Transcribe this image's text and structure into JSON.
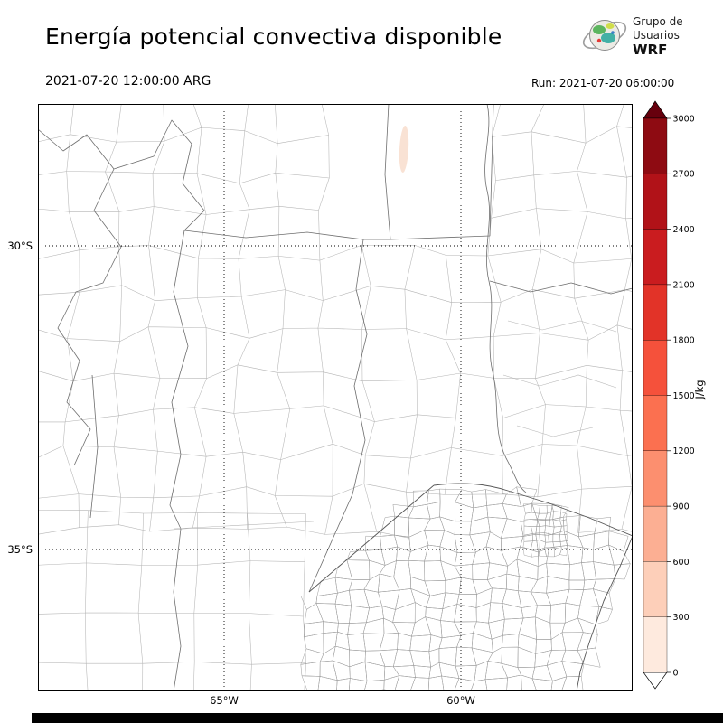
{
  "header": {
    "title": "Energía potencial convectiva disponible",
    "valid_time": "2021-07-20 12:00:00 ARG",
    "run_label": "Run: 2021-07-20 06:00:00",
    "logo": {
      "line1": "Grupo de",
      "line2": "Usuarios",
      "line3": "WRF"
    }
  },
  "map": {
    "lat_labels": {
      "lat30": "30°S",
      "lat35": "35°S"
    },
    "lon_labels": {
      "lon65": "65°W",
      "lon60": "60°W"
    }
  },
  "colorbar": {
    "unit": "J/kg",
    "ticks_top_to_bottom": [
      "3000",
      "2700",
      "2400",
      "2100",
      "1800",
      "1500",
      "1200",
      "900",
      "600",
      "300",
      "0"
    ],
    "segment_colors_top_to_bottom": [
      "#8e0b12",
      "#b11218",
      "#ca1c1f",
      "#e23328",
      "#f5513b",
      "#fb7050",
      "#fc8f6f",
      "#fcaf93",
      "#fdcfb9",
      "#feeade"
    ],
    "over_color": "#67000d",
    "under_color": "#ffffff"
  },
  "chart_data": {
    "type": "heatmap",
    "title": "Energía potencial convectiva disponible",
    "field": "CAPE (convective available potential energy)",
    "units": "J/kg",
    "valid_time": "2021-07-20 12:00:00 ARG",
    "run": "2021-07-20 06:00:00",
    "colorbar_levels": [
      0,
      300,
      600,
      900,
      1200,
      1500,
      1800,
      2100,
      2400,
      2700,
      3000
    ],
    "lat_gridlines": [
      "30°S",
      "35°S"
    ],
    "lon_gridlines": [
      "65°W",
      "60°W"
    ],
    "field_summary": [
      {
        "region": "most of the mapped domain (central Argentina)",
        "value": 0
      },
      {
        "region": "small elongated patch near 61.3°W, 28.4°S",
        "value": 150
      }
    ],
    "legend_position": "right vertical colorbar with over/under arrow extensions"
  }
}
